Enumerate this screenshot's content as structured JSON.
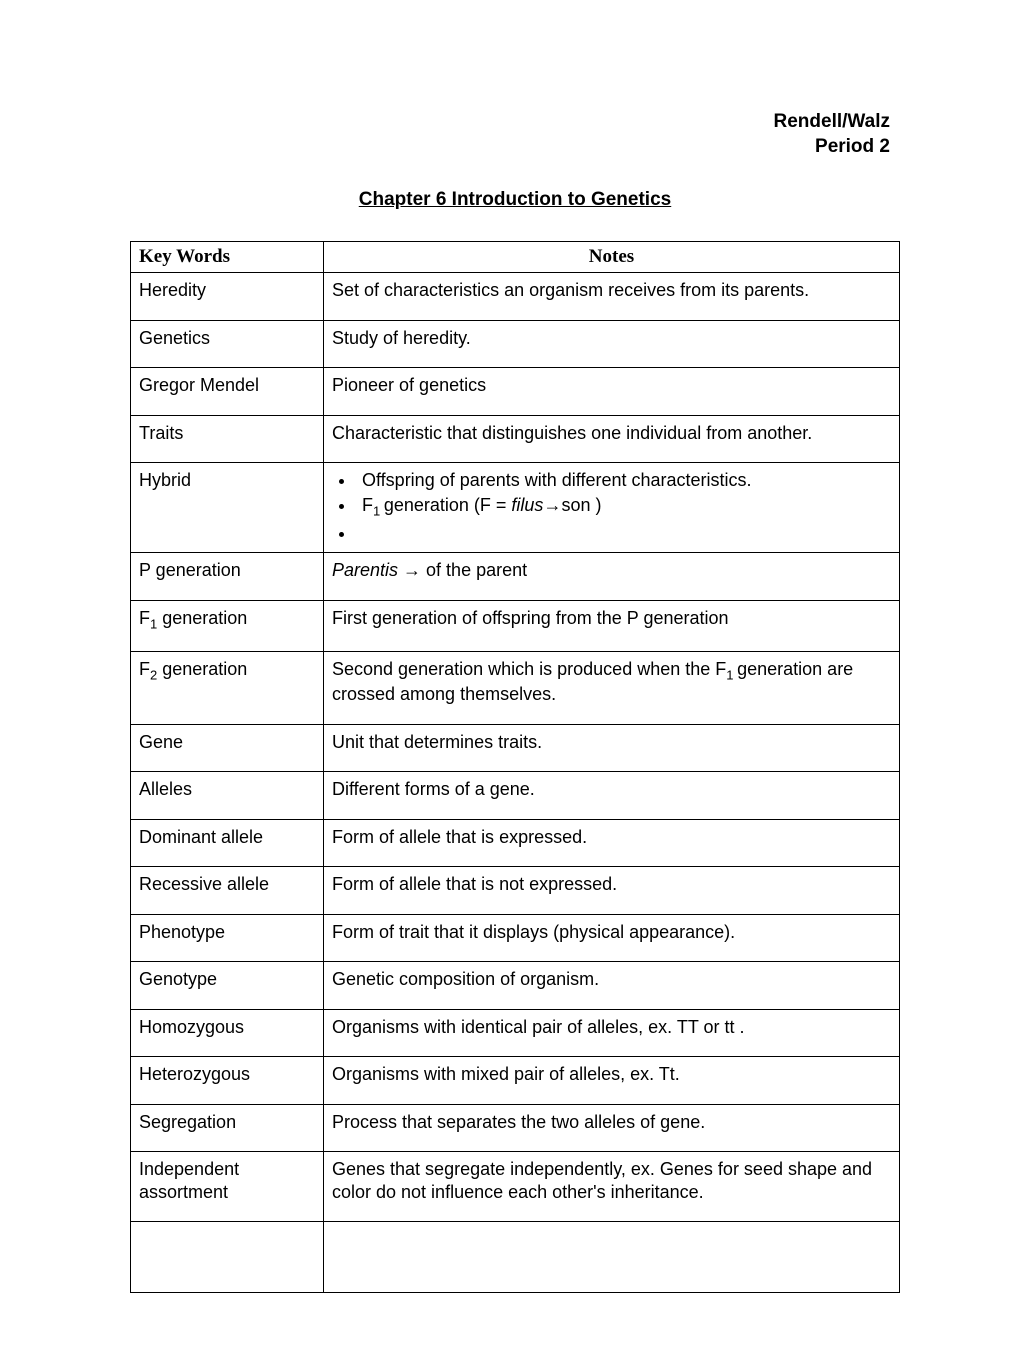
{
  "header": {
    "line1": "Rendell/Walz",
    "line2": "Period 2"
  },
  "title": "Chapter 6 Introduction to Genetics",
  "table": {
    "headers": {
      "keywords": "Key Words",
      "notes": "Notes"
    },
    "rows": [
      {
        "key": "Heredity",
        "note": "Set of characteristics an organism receives from its parents."
      },
      {
        "key": "Genetics",
        "note": "Study of heredity."
      },
      {
        "key": "Gregor Mendel",
        "note": "Pioneer of genetics"
      },
      {
        "key": "Traits",
        "note": "Characteristic that distinguishes one individual from another."
      },
      {
        "key": "Hybrid",
        "bullets": [
          "Offspring of parents with different characteristics.",
          "F₁ generation  (F = filus→son )",
          ""
        ]
      },
      {
        "key": "P generation",
        "note_html": "<span class=\"italic\">Parentis </span> <span class=\"arrow\">→</span> of the parent"
      },
      {
        "key_html": "F<span class=\"sub\">1</span>  generation",
        "note": "First generation of offspring from the P generation"
      },
      {
        "key_html": "F<span class=\"sub\">2</span>  generation",
        "note_html": "Second generation which is produced when the F<span class=\"sub\">1 </span>generation are crossed among themselves."
      },
      {
        "key": "Gene",
        "note": "Unit that determines traits."
      },
      {
        "key": "Alleles",
        "note": "Different forms of a gene."
      },
      {
        "key": "Dominant allele",
        "note": "Form of allele that is expressed."
      },
      {
        "key": "Recessive allele",
        "note": "Form of allele that is not expressed."
      },
      {
        "key": "Phenotype",
        "note": "Form of trait that it displays (physical appearance)."
      },
      {
        "key": "Genotype",
        "note": "Genetic composition of organism."
      },
      {
        "key": "Homozygous",
        "note": "Organisms with identical pair of alleles, ex. TT or tt ."
      },
      {
        "key": "Heterozygous",
        "note": "Organisms with mixed pair of alleles, ex. Tt."
      },
      {
        "key": "Segregation",
        "note": "Process that separates the two alleles of gene."
      },
      {
        "key": "Independent assortment",
        "note": "Genes that segregate independently, ex. Genes for seed shape and color do not influence each other's inheritance."
      },
      {
        "key": "",
        "note": ""
      }
    ]
  },
  "hybrid_bullet_1": "Offspring of parents with different characteristics.",
  "hybrid_bullet_2_html": "F<span class=\"sub\">1 </span>generation  (F = <span class=\"italic\">filus</span><span class=\"arrow\">→</span>son )"
}
